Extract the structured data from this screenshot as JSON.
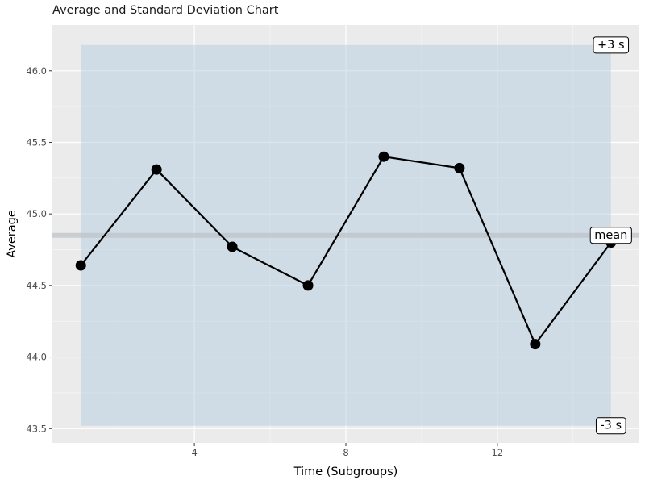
{
  "chart_data": {
    "type": "line",
    "title": "Average and Standard Deviation Chart",
    "xlabel": "Time (Subgroups)",
    "ylabel": "Average",
    "xlim": [
      0.25,
      15.75
    ],
    "ylim": [
      43.4,
      46.32
    ],
    "x_ticks": [
      4,
      8,
      12
    ],
    "y_ticks": [
      43.5,
      44.0,
      44.5,
      45.0,
      45.5,
      46.0
    ],
    "y_tick_labels": [
      "43.5",
      "44.0",
      "44.5",
      "45.0",
      "45.5",
      "46.0"
    ],
    "grid": true,
    "series": [
      {
        "x": [
          1,
          3,
          5,
          7,
          9,
          11,
          13,
          15
        ],
        "values": [
          44.64,
          45.31,
          44.77,
          44.5,
          45.4,
          45.32,
          44.09,
          44.8
        ]
      }
    ],
    "mean": 44.85,
    "upper_limit": 46.18,
    "lower_limit": 43.52,
    "band_x": [
      1,
      15
    ],
    "annotations": [
      {
        "label": "+3 s",
        "x": 15,
        "y": 46.18
      },
      {
        "label": "mean",
        "x": 15,
        "y": 44.85
      },
      {
        "label": "-3 s",
        "x": 15,
        "y": 43.52
      }
    ],
    "colors": {
      "panel": "#ebebeb",
      "band": "#b4cde0",
      "mean_line": "#bfc3c8",
      "line": "#000000",
      "point": "#000000"
    }
  }
}
